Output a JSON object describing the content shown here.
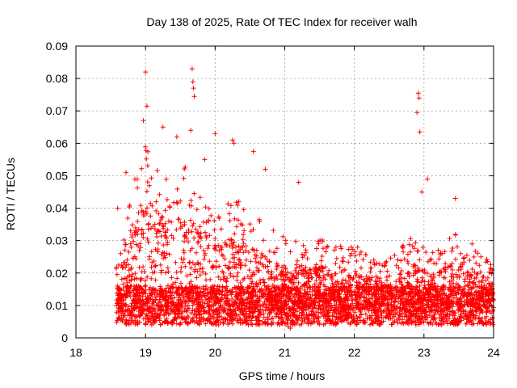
{
  "chart_data": {
    "type": "scatter",
    "title": "Day 138 of 2025, Rate Of TEC Index for receiver walh",
    "xlabel": "GPS time / hours",
    "ylabel": "ROTI / TECUs",
    "xlim": [
      18,
      24
    ],
    "ylim": [
      0,
      0.09
    ],
    "xticks": [
      18,
      19,
      20,
      21,
      22,
      23,
      24
    ],
    "yticks": [
      0,
      0.01,
      0.02,
      0.03,
      0.04,
      0.05,
      0.06,
      0.07,
      0.08,
      0.09
    ],
    "xtick_labels": [
      "18",
      "19",
      "20",
      "21",
      "22",
      "23",
      "24"
    ],
    "ytick_labels": [
      "0",
      "0.01",
      "0.02",
      "0.03",
      "0.04",
      "0.05",
      "0.06",
      "0.07",
      "0.08",
      "0.09"
    ],
    "grid": true,
    "marker": "+",
    "color": "#ff0000",
    "x_start": 18.58,
    "x_end": 24.0,
    "envelope": [
      {
        "x": 18.6,
        "y": 0.025
      },
      {
        "x": 18.8,
        "y": 0.048
      },
      {
        "x": 19.0,
        "y": 0.058
      },
      {
        "x": 19.3,
        "y": 0.048
      },
      {
        "x": 19.6,
        "y": 0.052
      },
      {
        "x": 20.0,
        "y": 0.04
      },
      {
        "x": 20.3,
        "y": 0.042
      },
      {
        "x": 20.6,
        "y": 0.036
      },
      {
        "x": 21.0,
        "y": 0.03
      },
      {
        "x": 21.3,
        "y": 0.028
      },
      {
        "x": 21.6,
        "y": 0.03
      },
      {
        "x": 22.0,
        "y": 0.028
      },
      {
        "x": 22.4,
        "y": 0.022
      },
      {
        "x": 22.8,
        "y": 0.03
      },
      {
        "x": 23.1,
        "y": 0.026
      },
      {
        "x": 23.5,
        "y": 0.032
      },
      {
        "x": 24.0,
        "y": 0.022
      }
    ],
    "spikes": [
      {
        "x": 19.0,
        "y": 0.082
      },
      {
        "x": 19.02,
        "y": 0.0715
      },
      {
        "x": 18.97,
        "y": 0.067
      },
      {
        "x": 19.67,
        "y": 0.083
      },
      {
        "x": 19.68,
        "y": 0.079
      },
      {
        "x": 19.69,
        "y": 0.077
      },
      {
        "x": 19.7,
        "y": 0.0745
      },
      {
        "x": 19.65,
        "y": 0.064
      },
      {
        "x": 20.0,
        "y": 0.063
      },
      {
        "x": 20.25,
        "y": 0.061
      },
      {
        "x": 20.27,
        "y": 0.06
      },
      {
        "x": 19.45,
        "y": 0.062
      },
      {
        "x": 19.25,
        "y": 0.065
      },
      {
        "x": 22.92,
        "y": 0.0755
      },
      {
        "x": 22.93,
        "y": 0.074
      },
      {
        "x": 22.9,
        "y": 0.0695
      },
      {
        "x": 22.94,
        "y": 0.0635
      },
      {
        "x": 23.05,
        "y": 0.049
      },
      {
        "x": 20.55,
        "y": 0.0575
      },
      {
        "x": 21.2,
        "y": 0.048
      },
      {
        "x": 20.72,
        "y": 0.052
      },
      {
        "x": 19.85,
        "y": 0.055
      },
      {
        "x": 18.72,
        "y": 0.051
      },
      {
        "x": 18.6,
        "y": 0.04
      },
      {
        "x": 23.45,
        "y": 0.043
      },
      {
        "x": 22.97,
        "y": 0.045
      },
      {
        "x": 21.08,
        "y": 0.003
      },
      {
        "x": 21.05,
        "y": 0.0035
      },
      {
        "x": 19.0,
        "y": 0.0045
      },
      {
        "x": 20.05,
        "y": 0.004
      }
    ],
    "n_points": 4200,
    "seed": 138
  }
}
